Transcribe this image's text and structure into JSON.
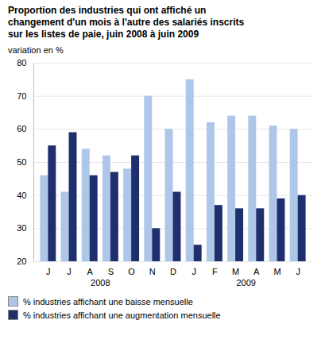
{
  "chart_data": {
    "type": "bar",
    "title": "Proportion des industries qui ont affiché un\nchangement d'un mois à l'autre des salariés inscrits\nsur les listes de paie, juin 2008 à juin 2009",
    "ylabel": "variation en %",
    "categories": [
      "J",
      "J",
      "A",
      "S",
      "O",
      "N",
      "D",
      "J",
      "F",
      "M",
      "A",
      "M",
      "J"
    ],
    "series": [
      {
        "name": "% industries affichant une baisse mensuelle",
        "color": "#aec6e8",
        "values": [
          46,
          41,
          54,
          52,
          48,
          70,
          60,
          75,
          62,
          64,
          64,
          61,
          60
        ]
      },
      {
        "name": "% industries affichant une augmentation mensuelle",
        "color": "#1f2f6e",
        "values": [
          55,
          59,
          46,
          47,
          52,
          30,
          41,
          25,
          37,
          36,
          36,
          39,
          40
        ]
      }
    ],
    "ylim": [
      20,
      80
    ],
    "yticks": [
      20,
      30,
      40,
      50,
      60,
      70,
      80
    ],
    "grid": true,
    "annotations": [
      {
        "text": "2008",
        "x": 2.5
      },
      {
        "text": "2009",
        "x": 9.5
      }
    ]
  }
}
